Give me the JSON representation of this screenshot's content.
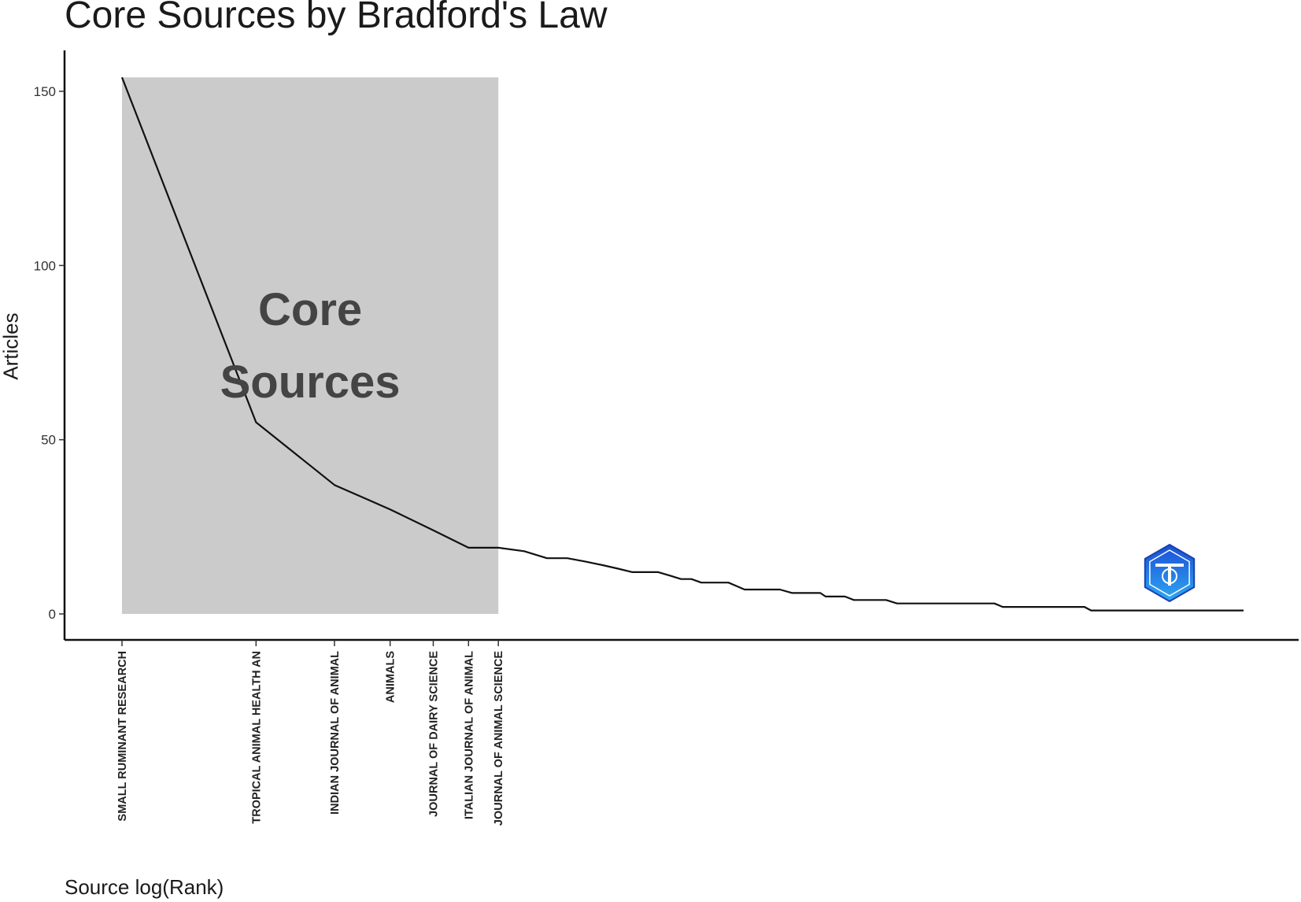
{
  "chart_data": {
    "type": "line",
    "title": "Core Sources by Bradford's Law",
    "xlabel": "Source log(Rank)",
    "ylabel": "Articles",
    "x_scale": "log",
    "ylim": [
      0,
      154
    ],
    "y_ticks": [
      0,
      50,
      100,
      150
    ],
    "grid": false,
    "core_zone": {
      "label_lines": [
        "Core",
        "Sources"
      ],
      "rank_range": [
        1,
        7
      ],
      "color": "#cbcbcb"
    },
    "tick_labels": [
      {
        "rank": 1,
        "label": "SMALL RUMINANT RESEARCH"
      },
      {
        "rank": 2,
        "label": "TROPICAL ANIMAL HEALTH AN"
      },
      {
        "rank": 3,
        "label": "INDIAN JOURNAL OF ANIMAL"
      },
      {
        "rank": 4,
        "label": "ANIMALS"
      },
      {
        "rank": 5,
        "label": "JOURNAL OF DAIRY SCIENCE"
      },
      {
        "rank": 6,
        "label": "ITALIAN JOURNAL OF ANIMAL"
      },
      {
        "rank": 7,
        "label": "JOURNAL OF ANIMAL SCIENCE"
      }
    ],
    "points": [
      {
        "rank": 1,
        "articles": 154
      },
      {
        "rank": 2,
        "articles": 55
      },
      {
        "rank": 3,
        "articles": 37
      },
      {
        "rank": 4,
        "articles": 30
      },
      {
        "rank": 5,
        "articles": 24
      },
      {
        "rank": 6,
        "articles": 19
      },
      {
        "rank": 7,
        "articles": 19
      },
      {
        "rank": 8,
        "articles": 18
      },
      {
        "rank": 9,
        "articles": 16
      },
      {
        "rank": 10,
        "articles": 16
      },
      {
        "rank": 11,
        "articles": 15
      },
      {
        "rank": 12,
        "articles": 14
      },
      {
        "rank": 13,
        "articles": 13
      },
      {
        "rank": 14,
        "articles": 12
      },
      {
        "rank": 16,
        "articles": 12
      },
      {
        "rank": 17,
        "articles": 11
      },
      {
        "rank": 18,
        "articles": 10
      },
      {
        "rank": 19,
        "articles": 10
      },
      {
        "rank": 20,
        "articles": 9
      },
      {
        "rank": 23,
        "articles": 9
      },
      {
        "rank": 24,
        "articles": 8
      },
      {
        "rank": 25,
        "articles": 7
      },
      {
        "rank": 30,
        "articles": 7
      },
      {
        "rank": 32,
        "articles": 6
      },
      {
        "rank": 37,
        "articles": 6
      },
      {
        "rank": 38,
        "articles": 5
      },
      {
        "rank": 42,
        "articles": 5
      },
      {
        "rank": 44,
        "articles": 4
      },
      {
        "rank": 52,
        "articles": 4
      },
      {
        "rank": 55,
        "articles": 3
      },
      {
        "rank": 91,
        "articles": 3
      },
      {
        "rank": 95,
        "articles": 2
      },
      {
        "rank": 145,
        "articles": 2
      },
      {
        "rank": 150,
        "articles": 1
      },
      {
        "rank": 330,
        "articles": 1
      }
    ],
    "line_color": "#111111"
  },
  "watermark": {
    "icon": "hexagon-seal-icon",
    "colors": [
      "#1b4fd6",
      "#2fa8f2"
    ]
  }
}
